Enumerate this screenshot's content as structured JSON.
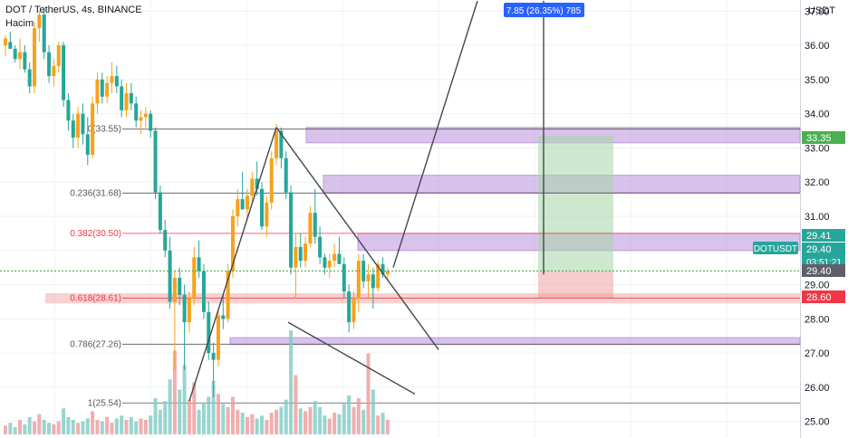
{
  "header": {
    "title": "DOT / TetherUS, 4s, BINANCE",
    "volume_label": "Hacim"
  },
  "axis": {
    "currency": "USDT"
  },
  "colors": {
    "up": "#f7a21b",
    "down": "#26a69a",
    "vol_up": "#ef9a9a",
    "vol_down": "#80cbc4",
    "zone": "#b388d9",
    "fib_red": "#f23645",
    "current": "#4caf50"
  },
  "chart_data": {
    "type": "candlestick",
    "ylim": [
      24.7,
      37.3
    ],
    "yticks": [
      "37.00",
      "36.00",
      "35.00",
      "34.00",
      "33.00",
      "32.00",
      "31.00",
      "30.00",
      "29.00",
      "28.00",
      "27.00",
      "26.00",
      "25.00"
    ],
    "fib_levels": [
      {
        "label": "0(33.55)",
        "value": 33.55
      },
      {
        "label": "0.236(31.68)",
        "value": 31.68
      },
      {
        "label": "0.382(30.50)",
        "value": 30.5
      },
      {
        "label": "0.618(28.61)",
        "value": 28.61
      },
      {
        "label": "0.786(27.26)",
        "value": 27.26
      },
      {
        "label": "1(25.54)",
        "value": 25.54
      }
    ],
    "zones": [
      {
        "from": 33.15,
        "to": 33.6
      },
      {
        "from": 31.7,
        "to": 32.2
      },
      {
        "from": 30.0,
        "to": 30.5
      },
      {
        "from": 27.25,
        "to": 27.45
      }
    ],
    "measure_label": "7.85 (26.35%) 785",
    "price_labels": [
      {
        "text": "33.35",
        "value": 33.35,
        "kind": "target"
      },
      {
        "text": "29.41",
        "value": 29.41,
        "kind": "level"
      },
      {
        "text": "DOTUSDT",
        "value": 29.4,
        "kind": "symbol"
      },
      {
        "text": "29.40",
        "value": 29.4,
        "kind": "last"
      },
      {
        "text": "03:51:21",
        "value": 29.4,
        "kind": "timer"
      },
      {
        "text": "29.40",
        "value": 29.4,
        "kind": "grey"
      },
      {
        "text": "28.60",
        "value": 28.6,
        "kind": "stop"
      }
    ],
    "candles": [
      [
        36.0,
        36.3,
        35.7,
        36.2
      ],
      [
        36.1,
        36.4,
        35.9,
        35.9
      ],
      [
        35.9,
        36.0,
        35.5,
        35.6
      ],
      [
        35.6,
        36.2,
        35.3,
        35.8
      ],
      [
        35.8,
        36.0,
        35.2,
        35.3
      ],
      [
        35.3,
        35.5,
        34.6,
        34.8
      ],
      [
        34.8,
        36.7,
        34.6,
        36.5
      ],
      [
        36.5,
        37.0,
        36.1,
        36.9
      ],
      [
        36.9,
        37.1,
        35.6,
        35.8
      ],
      [
        35.8,
        36.0,
        34.9,
        35.1
      ],
      [
        35.1,
        35.6,
        34.8,
        35.4
      ],
      [
        35.4,
        36.1,
        35.2,
        36.0
      ],
      [
        36.0,
        36.1,
        34.2,
        34.4
      ],
      [
        34.4,
        34.6,
        33.5,
        33.8
      ],
      [
        33.8,
        34.0,
        33.0,
        33.3
      ],
      [
        33.3,
        34.2,
        33.0,
        34.0
      ],
      [
        34.0,
        34.3,
        33.1,
        33.4
      ],
      [
        33.4,
        33.9,
        32.5,
        32.8
      ],
      [
        32.8,
        34.5,
        32.7,
        34.3
      ],
      [
        34.3,
        35.2,
        34.0,
        35.0
      ],
      [
        35.0,
        35.2,
        34.3,
        34.5
      ],
      [
        34.5,
        35.1,
        34.3,
        34.9
      ],
      [
        34.9,
        35.5,
        34.6,
        35.1
      ],
      [
        35.1,
        35.4,
        34.6,
        34.8
      ],
      [
        34.8,
        35.0,
        33.9,
        34.1
      ],
      [
        34.1,
        34.9,
        33.9,
        34.6
      ],
      [
        34.6,
        34.9,
        34.1,
        34.3
      ],
      [
        34.3,
        34.5,
        33.6,
        33.8
      ],
      [
        33.8,
        34.1,
        33.4,
        33.9
      ],
      [
        33.9,
        34.2,
        33.6,
        34.0
      ],
      [
        34.0,
        34.1,
        33.3,
        33.5
      ],
      [
        33.5,
        33.6,
        31.5,
        31.7
      ],
      [
        31.7,
        31.9,
        30.5,
        30.6
      ],
      [
        30.6,
        30.9,
        29.8,
        30.0
      ],
      [
        30.0,
        30.4,
        28.3,
        28.5
      ],
      [
        28.5,
        29.4,
        26.5,
        29.2
      ],
      [
        29.2,
        29.5,
        28.4,
        28.7
      ],
      [
        28.7,
        29.0,
        26.5,
        27.9
      ],
      [
        27.9,
        28.8,
        27.6,
        28.6
      ],
      [
        28.6,
        30.1,
        28.4,
        29.8
      ],
      [
        29.8,
        30.3,
        29.2,
        29.4
      ],
      [
        29.4,
        29.6,
        28.0,
        28.2
      ],
      [
        28.2,
        28.5,
        26.8,
        27.0
      ],
      [
        27.0,
        27.3,
        25.7,
        26.8
      ],
      [
        26.8,
        28.3,
        26.6,
        28.1
      ],
      [
        28.1,
        28.7,
        27.7,
        28.0
      ],
      [
        28.0,
        29.6,
        27.9,
        29.4
      ],
      [
        29.4,
        31.2,
        29.2,
        31.0
      ],
      [
        31.0,
        31.8,
        30.7,
        31.5
      ],
      [
        31.5,
        32.3,
        31.2,
        31.2
      ],
      [
        31.2,
        31.8,
        30.9,
        31.6
      ],
      [
        31.6,
        32.3,
        31.4,
        32.1
      ],
      [
        32.1,
        32.6,
        31.6,
        31.8
      ],
      [
        31.8,
        32.0,
        30.6,
        30.7
      ],
      [
        30.7,
        31.6,
        30.4,
        31.4
      ],
      [
        31.4,
        32.9,
        31.2,
        32.7
      ],
      [
        32.7,
        33.7,
        32.5,
        33.5
      ],
      [
        33.5,
        33.6,
        32.4,
        32.7
      ],
      [
        32.7,
        32.9,
        31.5,
        31.7
      ],
      [
        31.7,
        31.9,
        29.3,
        29.5
      ],
      [
        29.5,
        30.5,
        28.6,
        30.1
      ],
      [
        30.1,
        30.5,
        29.5,
        29.7
      ],
      [
        29.7,
        30.4,
        29.5,
        30.2
      ],
      [
        30.2,
        31.3,
        30.1,
        31.1
      ],
      [
        31.1,
        31.8,
        30.2,
        30.4
      ],
      [
        30.4,
        30.7,
        29.6,
        29.8
      ],
      [
        29.8,
        29.9,
        29.3,
        29.5
      ],
      [
        29.5,
        29.9,
        29.2,
        29.7
      ],
      [
        29.7,
        30.2,
        29.5,
        29.9
      ],
      [
        29.9,
        30.4,
        29.6,
        29.6
      ],
      [
        29.6,
        29.8,
        28.6,
        28.8
      ],
      [
        28.8,
        29.0,
        27.6,
        27.9
      ],
      [
        27.9,
        28.8,
        27.7,
        28.6
      ],
      [
        28.6,
        29.9,
        28.2,
        29.7
      ],
      [
        29.7,
        29.9,
        28.9,
        29.1
      ],
      [
        29.1,
        29.6,
        28.6,
        29.3
      ],
      [
        29.3,
        29.5,
        28.3,
        28.9
      ],
      [
        28.9,
        29.7,
        28.8,
        29.6
      ],
      [
        29.6,
        29.8,
        29.2,
        29.3
      ],
      [
        29.3,
        29.5,
        29.1,
        29.4
      ]
    ],
    "volumes": [
      6,
      8,
      5,
      10,
      7,
      12,
      9,
      14,
      10,
      8,
      7,
      9,
      18,
      12,
      10,
      8,
      9,
      11,
      16,
      10,
      9,
      12,
      8,
      11,
      13,
      10,
      12,
      9,
      11,
      10,
      13,
      25,
      17,
      23,
      38,
      58,
      31,
      48,
      24,
      36,
      17,
      22,
      26,
      37,
      28,
      21,
      19,
      26,
      17,
      15,
      12,
      14,
      11,
      13,
      10,
      15,
      17,
      19,
      24,
      72,
      41,
      18,
      16,
      19,
      23,
      19,
      13,
      11,
      15,
      14,
      21,
      27,
      19,
      25,
      17,
      56,
      31,
      13,
      15,
      10
    ]
  }
}
